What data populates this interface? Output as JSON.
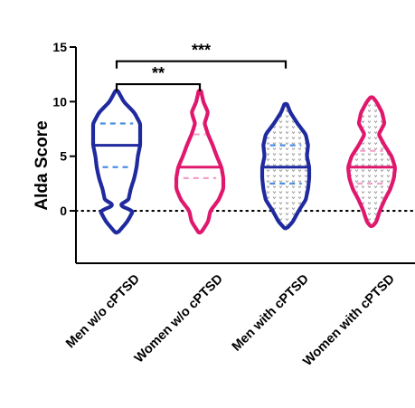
{
  "chart_data": {
    "type": "violin",
    "title": "",
    "xlabel": "",
    "ylabel": "Alda Score",
    "ylim": [
      -4.8,
      15
    ],
    "yticks": [
      0,
      5,
      10,
      15
    ],
    "reference_line_y": 0,
    "categories": [
      "Men w/o cPTSD",
      "Women w/o cPTSD",
      "Men with cPTSD",
      "Women with cPTSD"
    ],
    "series": [
      {
        "color": "#1f2a9e",
        "quartile_color": "#4a8fe0",
        "pattern": "none",
        "min": -2,
        "max": 11,
        "median": 6,
        "q1": 4,
        "q3": 8,
        "profile": [
          [
            -2,
            0.05
          ],
          [
            -1,
            0.45
          ],
          [
            0,
            0.7
          ],
          [
            0.5,
            0.1
          ],
          [
            1,
            0.5
          ],
          [
            2,
            0.6
          ],
          [
            3,
            0.75
          ],
          [
            4,
            0.85
          ],
          [
            5,
            0.9
          ],
          [
            6,
            1.0
          ],
          [
            7,
            1.0
          ],
          [
            8,
            1.0
          ],
          [
            9,
            0.75
          ],
          [
            10,
            0.3
          ],
          [
            11,
            0.05
          ]
        ]
      },
      {
        "color": "#e0186d",
        "quartile_color": "#f2a0c8",
        "pattern": "none",
        "min": -2,
        "max": 11,
        "median": 4,
        "q1": 3,
        "q3": 7,
        "profile": [
          [
            -2,
            0.05
          ],
          [
            -1,
            0.35
          ],
          [
            0,
            0.45
          ],
          [
            1,
            0.8
          ],
          [
            2,
            1.0
          ],
          [
            3,
            1.0
          ],
          [
            4,
            0.92
          ],
          [
            5,
            0.72
          ],
          [
            6,
            0.55
          ],
          [
            7,
            0.35
          ],
          [
            8,
            0.2
          ],
          [
            9,
            0.35
          ],
          [
            10,
            0.15
          ],
          [
            11,
            0.05
          ]
        ]
      },
      {
        "color": "#1f2a9e",
        "quartile_color": "#4a8fe0",
        "pattern": "dots",
        "min": -1.6,
        "max": 9.8,
        "median": 4,
        "q1": 2.5,
        "q3": 6,
        "profile": [
          [
            -1.6,
            0.05
          ],
          [
            -1,
            0.3
          ],
          [
            0,
            0.55
          ],
          [
            1,
            0.85
          ],
          [
            2,
            0.95
          ],
          [
            3,
            1.0
          ],
          [
            4,
            1.0
          ],
          [
            5,
            0.9
          ],
          [
            6,
            0.95
          ],
          [
            7,
            0.85
          ],
          [
            8,
            0.5
          ],
          [
            9,
            0.2
          ],
          [
            9.8,
            0.05
          ]
        ]
      },
      {
        "color": "#e0186d",
        "quartile_color": "#f2a0c8",
        "pattern": "dots",
        "min": -1.4,
        "max": 10.4,
        "median": 4,
        "q1": 2.5,
        "q3": 5.5,
        "profile": [
          [
            -1.4,
            0.05
          ],
          [
            -1,
            0.2
          ],
          [
            0,
            0.35
          ],
          [
            1,
            0.55
          ],
          [
            2,
            0.8
          ],
          [
            3,
            0.95
          ],
          [
            4,
            1.0
          ],
          [
            5,
            0.85
          ],
          [
            6,
            0.55
          ],
          [
            7,
            0.3
          ],
          [
            8,
            0.55
          ],
          [
            9,
            0.45
          ],
          [
            10,
            0.2
          ],
          [
            10.4,
            0.05
          ]
        ]
      }
    ],
    "significance": [
      {
        "from": 0,
        "to": 1,
        "label": "**"
      },
      {
        "from": 0,
        "to": 2,
        "label": "***"
      }
    ]
  }
}
